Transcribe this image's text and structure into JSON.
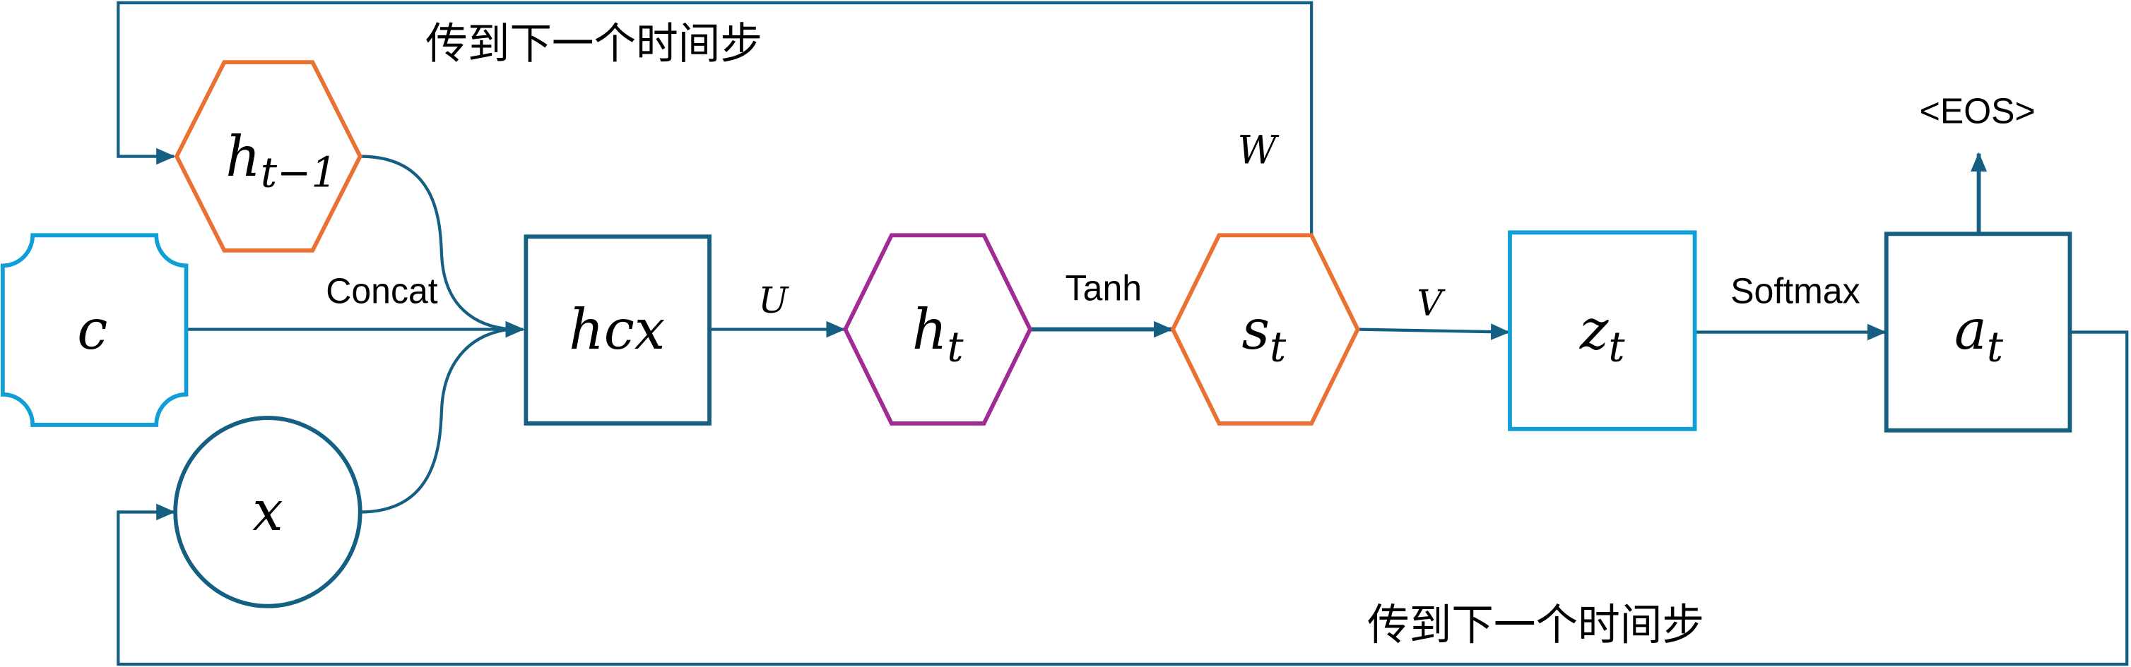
{
  "colors": {
    "dark_teal": "#156082",
    "orange": "#E97132",
    "light_blue": "#0F9ED5",
    "purple": "#A02B93"
  },
  "nodes": {
    "h_prev": {
      "base": "h",
      "sub": "t−1"
    },
    "c": {
      "base": "c"
    },
    "x": {
      "base": "x"
    },
    "hcx": {
      "base": "hcx"
    },
    "h_t": {
      "base": "h",
      "sub": "t"
    },
    "s_t": {
      "base": "s",
      "sub": "t"
    },
    "z_t": {
      "base": "z",
      "sub": "t"
    },
    "a_t": {
      "base": "a",
      "sub": "t"
    }
  },
  "edge_labels": {
    "concat": "Concat",
    "u": "U",
    "tanh": "Tanh",
    "w": "W",
    "v": "V",
    "softmax": "Softmax"
  },
  "annotations": {
    "feedback_top": "传到下一个时间步",
    "feedback_bottom": "传到下一个时间步",
    "eos": "<EOS>"
  }
}
